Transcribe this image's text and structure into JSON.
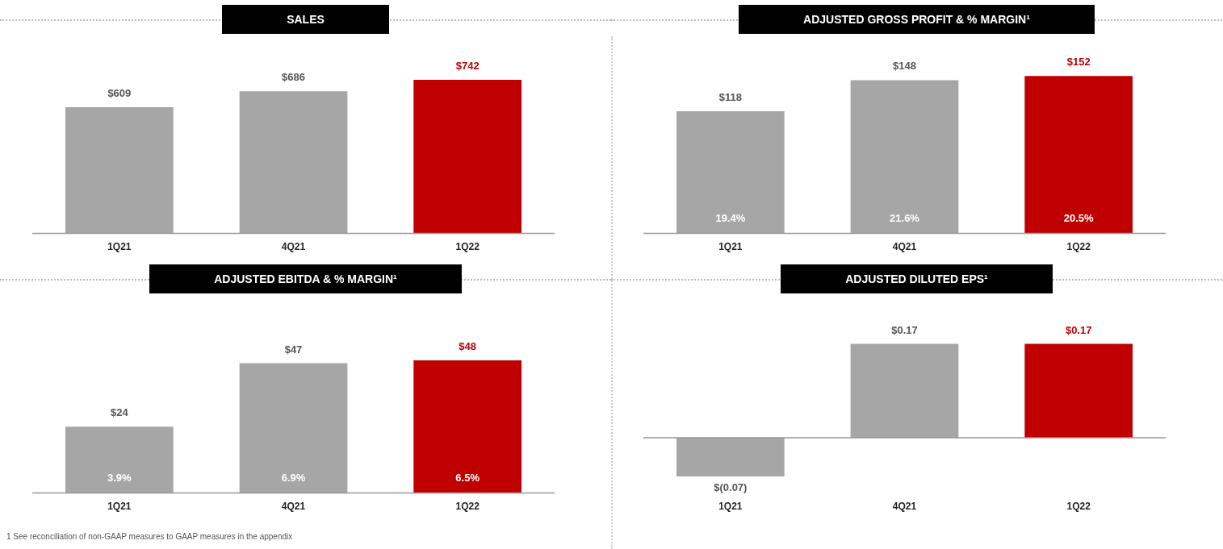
{
  "chart_data": [
    {
      "type": "bar",
      "title": "SALES",
      "categories": [
        "1Q21",
        "4Q21",
        "1Q22"
      ],
      "values": [
        609,
        686,
        742
      ],
      "colors": [
        "#a6a6a6",
        "#a6a6a6",
        "#c00000"
      ],
      "value_labels": [
        "$609",
        "$686",
        "$742"
      ],
      "tick_labels": "x",
      "grid": false,
      "legend": false
    },
    {
      "type": "bar",
      "title": "ADJUSTED GROSS PROFIT & % MARGIN¹",
      "categories": [
        "1Q21",
        "4Q21",
        "1Q22"
      ],
      "values": [
        118,
        148,
        152
      ],
      "colors": [
        "#a6a6a6",
        "#a6a6a6",
        "#c00000"
      ],
      "value_labels": [
        "$118",
        "$148",
        "$152"
      ],
      "tick_labels": "x",
      "grid": false,
      "legend": false,
      "annotations": [
        "19.4%",
        "21.6%",
        "20.5%"
      ]
    },
    {
      "type": "bar",
      "title": "ADJUSTED EBITDA & % MARGIN¹",
      "categories": [
        "1Q21",
        "4Q21",
        "1Q22"
      ],
      "values": [
        24,
        47,
        48
      ],
      "colors": [
        "#a6a6a6",
        "#a6a6a6",
        "#c00000"
      ],
      "value_labels": [
        "$24",
        "$47",
        "$48"
      ],
      "tick_labels": "x",
      "grid": false,
      "legend": false,
      "annotations": [
        "3.9%",
        "6.9%",
        "6.5%",
        "1    See reconciliation of non-GAAP measures to GAAP measures in the appendix"
      ]
    },
    {
      "type": "bar",
      "title": "ADJUSTED DILUTED EPS¹",
      "categories": [
        "1Q21",
        "4Q21",
        "1Q22"
      ],
      "values": [
        -0.07,
        0.17,
        0.17
      ],
      "colors": [
        "#a6a6a6",
        "#a6a6a6",
        "#c00000"
      ],
      "value_labels": [
        "$(0.07)",
        "$0.17",
        "$0.17"
      ],
      "tick_labels": "x",
      "grid": false,
      "legend": false
    }
  ]
}
